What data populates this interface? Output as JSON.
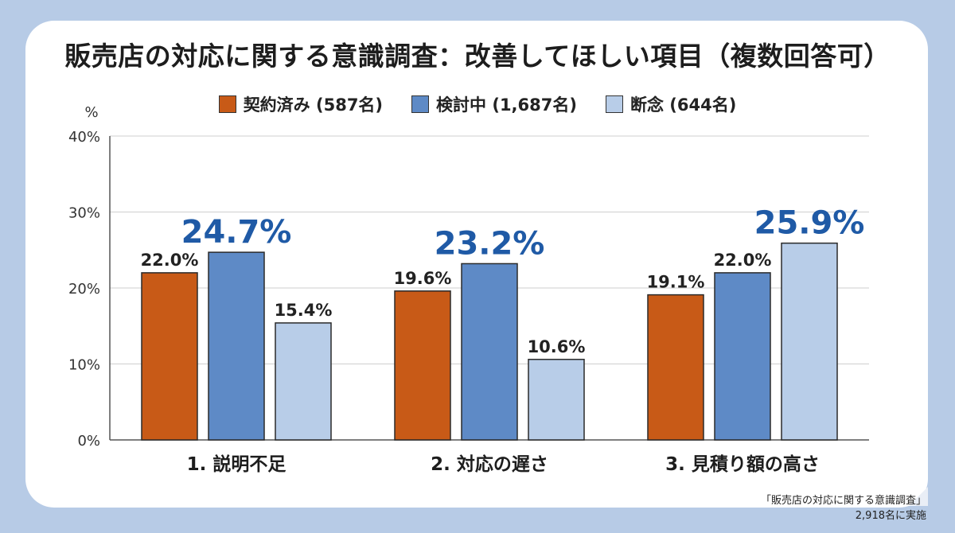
{
  "title": "販売店の対応に関する意識調査：改善してほしい項目（複数回答可）",
  "footnote": {
    "line1": "「販売店の対応に関する意識調査」",
    "line2": "2,918名に実施"
  },
  "chart_data": {
    "type": "bar",
    "title": "販売店の対応に関する意識調査：改善してほしい項目（複数回答可）",
    "ylabel": "%",
    "ylim": [
      0,
      40
    ],
    "yticks": [
      0,
      10,
      20,
      30,
      40
    ],
    "ytick_labels": [
      "0%",
      "10%",
      "20%",
      "30%",
      "40%"
    ],
    "categories": [
      "1. 説明不足",
      "2. 対応の遅さ",
      "3. 見積り額の高さ"
    ],
    "series": [
      {
        "name": "契約済み (587名)",
        "values": [
          22.0,
          19.6,
          19.1
        ],
        "labels": [
          "22.0%",
          "19.6%",
          "19.1%"
        ],
        "color": "#c85a17"
      },
      {
        "name": "検討中 (1,687名)",
        "values": [
          24.7,
          23.2,
          22.0
        ],
        "labels": [
          "24.7%",
          "23.2%",
          "22.0%"
        ],
        "color": "#5e8ac6"
      },
      {
        "name": "断念 (644名)",
        "values": [
          15.4,
          10.6,
          25.9
        ],
        "labels": [
          "15.4%",
          "10.6%",
          "25.9%"
        ],
        "color": "#b8cde8"
      }
    ],
    "highlight_color": "#1f5aa6",
    "grid": true,
    "legend_position": "top-center"
  }
}
